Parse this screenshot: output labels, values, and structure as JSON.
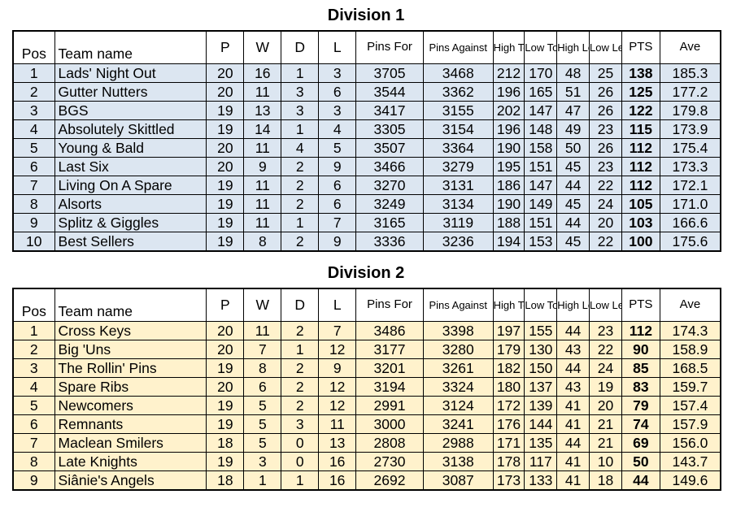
{
  "divisions": [
    {
      "title": "Division 1",
      "headers": [
        "Pos",
        "Team name",
        "P",
        "W",
        "D",
        "L",
        "Pins For",
        "Pins Against",
        "High Total",
        "Low Total",
        "High Leg",
        "Low Leg",
        "PTS",
        "Ave"
      ],
      "rows": [
        [
          "1",
          "Lads' Night Out",
          "20",
          "16",
          "1",
          "3",
          "3705",
          "3468",
          "212",
          "170",
          "48",
          "25",
          "138",
          "185.3"
        ],
        [
          "2",
          "Gutter Nutters",
          "20",
          "11",
          "3",
          "6",
          "3544",
          "3362",
          "196",
          "165",
          "51",
          "26",
          "125",
          "177.2"
        ],
        [
          "3",
          "BGS",
          "19",
          "13",
          "3",
          "3",
          "3417",
          "3155",
          "202",
          "147",
          "47",
          "26",
          "122",
          "179.8"
        ],
        [
          "4",
          "Absolutely Skittled",
          "19",
          "14",
          "1",
          "4",
          "3305",
          "3154",
          "196",
          "148",
          "49",
          "23",
          "115",
          "173.9"
        ],
        [
          "5",
          "Young & Bald",
          "20",
          "11",
          "4",
          "5",
          "3507",
          "3364",
          "190",
          "158",
          "50",
          "26",
          "112",
          "175.4"
        ],
        [
          "6",
          "Last Six",
          "20",
          "9",
          "2",
          "9",
          "3466",
          "3279",
          "195",
          "151",
          "45",
          "23",
          "112",
          "173.3"
        ],
        [
          "7",
          "Living On A Spare",
          "19",
          "11",
          "2",
          "6",
          "3270",
          "3131",
          "186",
          "147",
          "44",
          "22",
          "112",
          "172.1"
        ],
        [
          "8",
          "Alsorts",
          "19",
          "11",
          "2",
          "6",
          "3249",
          "3134",
          "190",
          "149",
          "45",
          "24",
          "105",
          "171.0"
        ],
        [
          "9",
          "Splitz & Giggles",
          "19",
          "11",
          "1",
          "7",
          "3165",
          "3119",
          "188",
          "151",
          "44",
          "20",
          "103",
          "166.6"
        ],
        [
          "10",
          "Best Sellers",
          "19",
          "8",
          "2",
          "9",
          "3336",
          "3236",
          "194",
          "153",
          "45",
          "22",
          "100",
          "175.6"
        ]
      ]
    },
    {
      "title": "Division 2",
      "headers": [
        "Pos",
        "Team name",
        "P",
        "W",
        "D",
        "L",
        "Pins For",
        "Pins Against",
        "High Total",
        "Low Total",
        "High Leg",
        "Low Leg",
        "PTS",
        "Ave"
      ],
      "rows": [
        [
          "1",
          "Cross Keys",
          "20",
          "11",
          "2",
          "7",
          "3486",
          "3398",
          "197",
          "155",
          "44",
          "23",
          "112",
          "174.3"
        ],
        [
          "2",
          "Big 'Uns",
          "20",
          "7",
          "1",
          "12",
          "3177",
          "3280",
          "179",
          "130",
          "43",
          "22",
          "90",
          "158.9"
        ],
        [
          "3",
          "The Rollin' Pins",
          "19",
          "8",
          "2",
          "9",
          "3201",
          "3261",
          "182",
          "150",
          "44",
          "24",
          "85",
          "168.5"
        ],
        [
          "4",
          "Spare Ribs",
          "20",
          "6",
          "2",
          "12",
          "3194",
          "3324",
          "180",
          "137",
          "43",
          "19",
          "83",
          "159.7"
        ],
        [
          "5",
          "Newcomers",
          "19",
          "5",
          "2",
          "12",
          "2991",
          "3124",
          "172",
          "139",
          "41",
          "20",
          "79",
          "157.4"
        ],
        [
          "6",
          "Remnants",
          "19",
          "5",
          "3",
          "11",
          "3000",
          "3241",
          "176",
          "144",
          "41",
          "21",
          "74",
          "157.9"
        ],
        [
          "7",
          "Maclean Smilers",
          "18",
          "5",
          "0",
          "13",
          "2808",
          "2988",
          "171",
          "135",
          "44",
          "21",
          "69",
          "156.0"
        ],
        [
          "8",
          "Late Knights",
          "19",
          "3",
          "0",
          "16",
          "2730",
          "3138",
          "178",
          "117",
          "41",
          "10",
          "50",
          "143.7"
        ],
        [
          "9",
          "Siânie's Angels",
          "18",
          "1",
          "1",
          "16",
          "2692",
          "3087",
          "173",
          "133",
          "41",
          "18",
          "44",
          "149.6"
        ]
      ]
    }
  ],
  "colors": {
    "division1_fill": "#dce6f1",
    "division2_fill": "#fff2cc"
  }
}
